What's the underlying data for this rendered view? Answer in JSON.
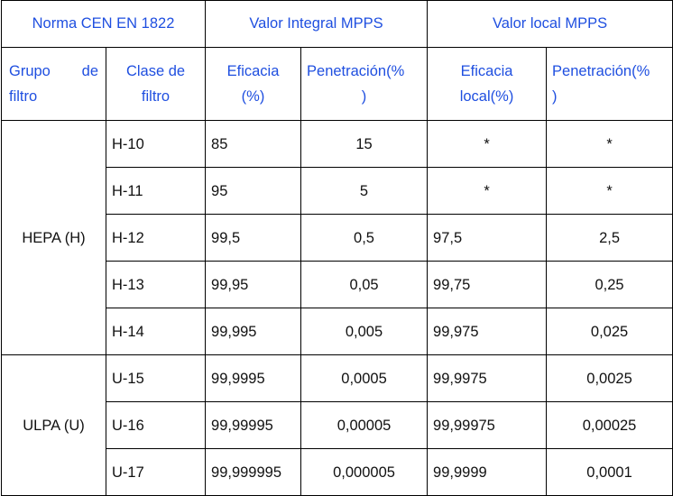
{
  "header_top": {
    "norma": "Norma CEN EN 1822",
    "integral": "Valor Integral MPPS",
    "local": "Valor local MPPS"
  },
  "header_sub": {
    "grupo_word1": "Grupo",
    "grupo_word2": "de",
    "grupo_word3": "filtro",
    "clase_line1": "Clase de",
    "clase_line2": "filtro",
    "eficacia_line1": "Eficacia",
    "eficacia_line2": "(%)",
    "penetracion_line1": "Penetración(%",
    "penetracion_line2": ")",
    "eficacia_local_line1": "Eficacia",
    "eficacia_local_line2": "local(%)",
    "penetracion_local_line1": "Penetración(%",
    "penetracion_local_line2": ")"
  },
  "groups": {
    "hepa": "HEPA (H)",
    "ulpa": "ULPA (U)"
  },
  "rows": [
    {
      "clase": "H-10",
      "eficacia": "85",
      "penetracion": "15",
      "eficacia_local": "*",
      "penetracion_local": "*"
    },
    {
      "clase": "H-11",
      "eficacia": "95",
      "penetracion": "5",
      "eficacia_local": "*",
      "penetracion_local": "*"
    },
    {
      "clase": "H-12",
      "eficacia": "99,5",
      "penetracion": "0,5",
      "eficacia_local": "97,5",
      "penetracion_local": "2,5"
    },
    {
      "clase": "H-13",
      "eficacia": "99,95",
      "penetracion": "0,05",
      "eficacia_local": "99,75",
      "penetracion_local": "0,25"
    },
    {
      "clase": "H-14",
      "eficacia": "99,995",
      "penetracion": "0,005",
      "eficacia_local": "99,975",
      "penetracion_local": "0,025"
    },
    {
      "clase": "U-15",
      "eficacia": "99,9995",
      "penetracion": "0,0005",
      "eficacia_local": "99,9975",
      "penetracion_local": "0,0025"
    },
    {
      "clase": "U-16",
      "eficacia": "99,99995",
      "penetracion": "0,00005",
      "eficacia_local": "99,99975",
      "penetracion_local": "0,00025"
    },
    {
      "clase": "U-17",
      "eficacia": "99,999995",
      "penetracion": "0,000005",
      "eficacia_local": "99,9999",
      "penetracion_local": "0,0001"
    }
  ]
}
